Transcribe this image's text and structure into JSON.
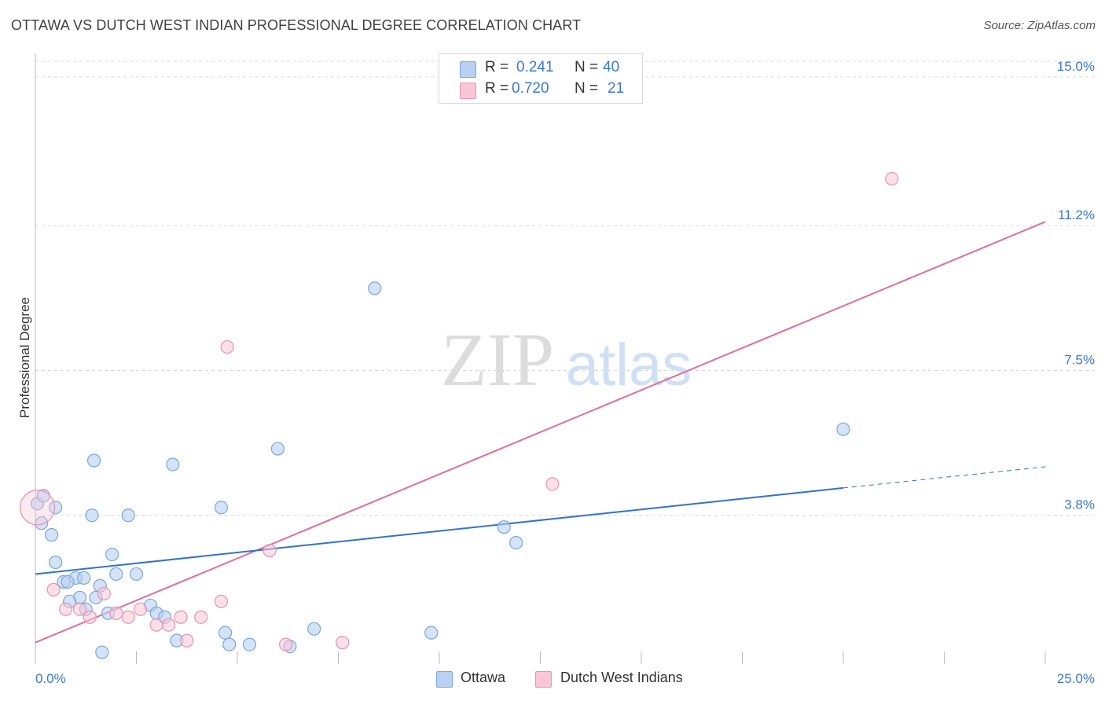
{
  "title": "OTTAWA VS DUTCH WEST INDIAN PROFESSIONAL DEGREE CORRELATION CHART",
  "source": "Source: ZipAtlas.com",
  "watermark": {
    "zip": "ZIP",
    "atlas": "atlas"
  },
  "legend_top": {
    "rows": [
      {
        "r_label": "R = ",
        "r_value": "0.241",
        "n_label": "N = ",
        "n_value": "40"
      },
      {
        "r_label": "R = ",
        "r_value": "0.720",
        "n_label": "N = ",
        "n_value": "21"
      }
    ]
  },
  "colors": {
    "ottawa_fill": "#b8d1f3",
    "ottawa_stroke": "#7aa6e0",
    "ottawa_line": "#2f72d0",
    "dutch_fill": "#f8c6d6",
    "dutch_stroke": "#e894b0",
    "dutch_line": "#e36c98",
    "tick_label": "#3b78d4",
    "grid": "#d9d9d9"
  },
  "chart_data": {
    "type": "scatter",
    "title": "OTTAWA VS DUTCH WEST INDIAN PROFESSIONAL DEGREE CORRELATION CHART",
    "xlabel": "",
    "ylabel": "Professional Degree",
    "xlim": [
      0,
      25
    ],
    "ylim": [
      0,
      15.4
    ],
    "x_tick_labels": [
      {
        "value": 0,
        "label": "0.0%"
      },
      {
        "value": 25,
        "label": "25.0%"
      }
    ],
    "y_tick_labels": [
      {
        "value": 3.8,
        "label": "3.8%"
      },
      {
        "value": 7.5,
        "label": "7.5%"
      },
      {
        "value": 11.2,
        "label": "11.2%"
      },
      {
        "value": 15.0,
        "label": "15.0%"
      }
    ],
    "legend_position": "bottom-center",
    "series": [
      {
        "name": "Ottawa",
        "r": 0.241,
        "n": 40,
        "points": [
          [
            0.05,
            4.1
          ],
          [
            0.2,
            4.3
          ],
          [
            0.5,
            4.0
          ],
          [
            0.15,
            3.6
          ],
          [
            0.4,
            3.3
          ],
          [
            0.5,
            2.6
          ],
          [
            1.45,
            5.2
          ],
          [
            3.4,
            5.1
          ],
          [
            6.0,
            5.5
          ],
          [
            8.4,
            9.6
          ],
          [
            1.4,
            3.8
          ],
          [
            2.3,
            3.8
          ],
          [
            4.6,
            4.0
          ],
          [
            11.6,
            3.5
          ],
          [
            11.9,
            3.1
          ],
          [
            20.0,
            6.0
          ],
          [
            1.9,
            2.8
          ],
          [
            2.0,
            2.3
          ],
          [
            2.5,
            2.3
          ],
          [
            1.0,
            2.2
          ],
          [
            1.2,
            2.2
          ],
          [
            0.7,
            2.1
          ],
          [
            0.8,
            2.1
          ],
          [
            1.6,
            2.0
          ],
          [
            1.5,
            1.7
          ],
          [
            1.1,
            1.7
          ],
          [
            0.85,
            1.6
          ],
          [
            1.25,
            1.4
          ],
          [
            1.8,
            1.3
          ],
          [
            2.85,
            1.5
          ],
          [
            3.0,
            1.3
          ],
          [
            3.2,
            1.2
          ],
          [
            4.7,
            0.8
          ],
          [
            6.9,
            0.9
          ],
          [
            9.8,
            0.8
          ],
          [
            3.5,
            0.6
          ],
          [
            4.8,
            0.5
          ],
          [
            5.3,
            0.5
          ],
          [
            6.3,
            0.45
          ],
          [
            1.65,
            0.3
          ]
        ],
        "trend": {
          "x0": 0,
          "y0": 2.3,
          "x1": 20,
          "y1": 4.5,
          "dashed_to_x": 25,
          "dashed_to_y": 5.04
        }
      },
      {
        "name": "Dutch West Indians",
        "r": 0.72,
        "n": 21,
        "points": [
          [
            0.05,
            4.0
          ],
          [
            4.75,
            8.1
          ],
          [
            21.2,
            12.4
          ],
          [
            12.8,
            4.6
          ],
          [
            5.8,
            2.9
          ],
          [
            0.45,
            1.9
          ],
          [
            1.7,
            1.8
          ],
          [
            4.6,
            1.6
          ],
          [
            0.75,
            1.4
          ],
          [
            1.1,
            1.4
          ],
          [
            2.6,
            1.4
          ],
          [
            2.0,
            1.3
          ],
          [
            2.3,
            1.2
          ],
          [
            1.35,
            1.2
          ],
          [
            3.6,
            1.2
          ],
          [
            4.1,
            1.2
          ],
          [
            3.0,
            1.0
          ],
          [
            3.3,
            1.0
          ],
          [
            3.75,
            0.6
          ],
          [
            7.6,
            0.55
          ],
          [
            6.2,
            0.5
          ]
        ],
        "trend": {
          "x0": 0,
          "y0": 0.55,
          "x1": 25,
          "y1": 11.3
        }
      }
    ]
  },
  "legend_bottom": {
    "items": [
      {
        "label": "Ottawa"
      },
      {
        "label": "Dutch West Indians"
      }
    ]
  }
}
